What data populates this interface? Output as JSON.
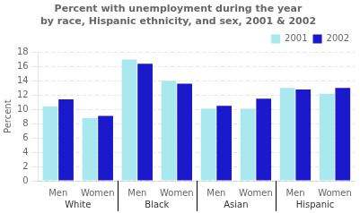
{
  "chart_data": {
    "type": "bar",
    "title": [
      "Percent with unemployment during the year",
      "by race, Hispanic ethnicity, and sex, 2001 & 2002"
    ],
    "ylabel": "Percent",
    "categories": [
      "Men",
      "Women",
      "Men",
      "Women",
      "Men",
      "Women",
      "Men",
      "Women"
    ],
    "groups": [
      "White",
      "Black",
      "Asian",
      "Hispanic"
    ],
    "series": [
      {
        "name": "2001",
        "color": "#aae8f0",
        "values": [
          10.4,
          8.8,
          17.0,
          14.0,
          10.1,
          10.1,
          13.0,
          12.2
        ]
      },
      {
        "name": "2002",
        "color": "#1a1acc",
        "values": [
          11.4,
          9.1,
          16.4,
          13.6,
          10.5,
          11.5,
          12.8,
          13.0
        ]
      }
    ],
    "ylim": [
      0,
      18
    ],
    "yticks": [
      0,
      2,
      4,
      6,
      8,
      10,
      12,
      14,
      16,
      18
    ],
    "grid": true,
    "legend": "upper right"
  }
}
